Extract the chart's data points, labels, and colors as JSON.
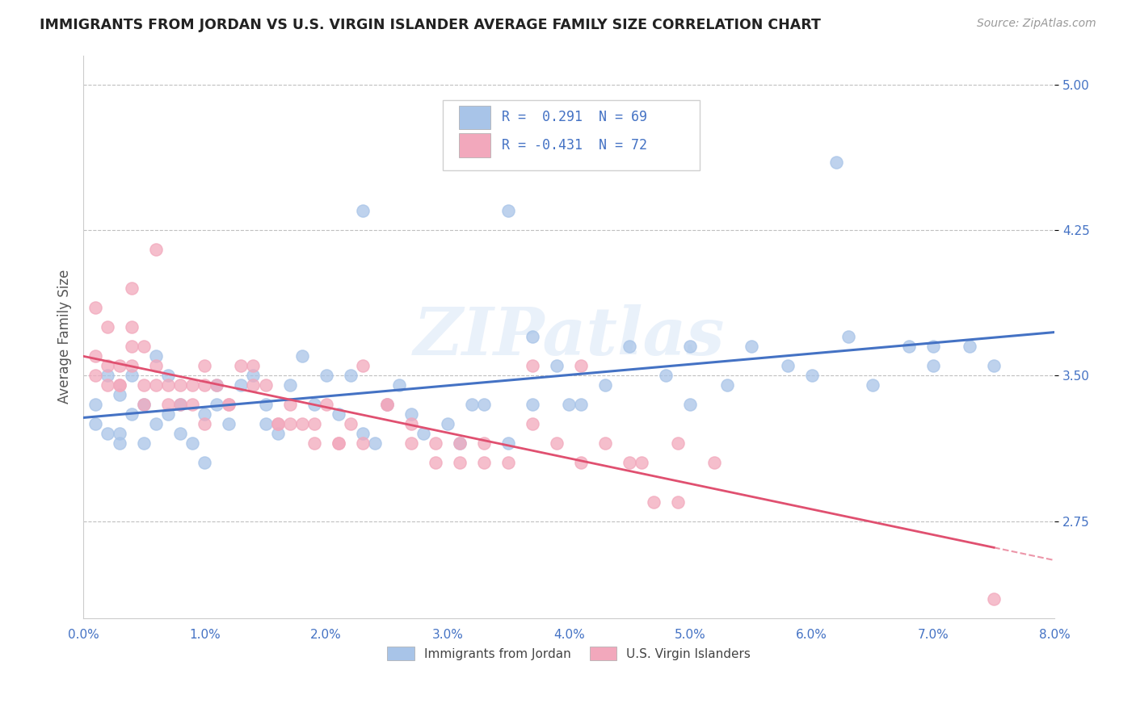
{
  "title": "IMMIGRANTS FROM JORDAN VS U.S. VIRGIN ISLANDER AVERAGE FAMILY SIZE CORRELATION CHART",
  "source": "Source: ZipAtlas.com",
  "ylabel": "Average Family Size",
  "xlim": [
    0.0,
    0.08
  ],
  "ylim": [
    2.25,
    5.15
  ],
  "yticks": [
    2.75,
    3.5,
    4.25,
    5.0
  ],
  "xticks": [
    0.0,
    0.01,
    0.02,
    0.03,
    0.04,
    0.05,
    0.06,
    0.07,
    0.08
  ],
  "xtick_labels": [
    "0.0%",
    "1.0%",
    "2.0%",
    "3.0%",
    "4.0%",
    "5.0%",
    "6.0%",
    "7.0%",
    "8.0%"
  ],
  "series1_color": "#a8c4e8",
  "series2_color": "#f2a8bc",
  "trend1_color": "#4472c4",
  "trend2_color": "#e05070",
  "R1": 0.291,
  "N1": 69,
  "R2": -0.431,
  "N2": 72,
  "legend_label1": "Immigrants from Jordan",
  "legend_label2": "U.S. Virgin Islanders",
  "watermark": "ZIPatlas",
  "title_color": "#222222",
  "axis_color": "#4472c4",
  "background_color": "#ffffff",
  "grid_color": "#c0c0c0",
  "series1_x": [
    0.001,
    0.001,
    0.002,
    0.002,
    0.003,
    0.003,
    0.003,
    0.004,
    0.004,
    0.005,
    0.005,
    0.006,
    0.006,
    0.007,
    0.007,
    0.008,
    0.008,
    0.009,
    0.01,
    0.01,
    0.011,
    0.011,
    0.012,
    0.013,
    0.014,
    0.015,
    0.016,
    0.017,
    0.018,
    0.019,
    0.02,
    0.021,
    0.022,
    0.023,
    0.024,
    0.025,
    0.026,
    0.027,
    0.028,
    0.03,
    0.031,
    0.032,
    0.033,
    0.035,
    0.037,
    0.039,
    0.041,
    0.043,
    0.045,
    0.048,
    0.05,
    0.053,
    0.055,
    0.058,
    0.06,
    0.063,
    0.065,
    0.068,
    0.07,
    0.073,
    0.037,
    0.05,
    0.035,
    0.023,
    0.015,
    0.062,
    0.075,
    0.07,
    0.04
  ],
  "series1_y": [
    3.25,
    3.35,
    3.5,
    3.2,
    3.4,
    3.2,
    3.15,
    3.3,
    3.5,
    3.35,
    3.15,
    3.25,
    3.6,
    3.3,
    3.5,
    3.35,
    3.2,
    3.15,
    3.3,
    3.05,
    3.35,
    3.45,
    3.25,
    3.45,
    3.5,
    3.35,
    3.2,
    3.45,
    3.6,
    3.35,
    3.5,
    3.3,
    3.5,
    3.2,
    3.15,
    3.35,
    3.45,
    3.3,
    3.2,
    3.25,
    3.15,
    3.35,
    3.35,
    3.15,
    3.35,
    3.55,
    3.35,
    3.45,
    3.65,
    3.5,
    3.35,
    3.45,
    3.65,
    3.55,
    3.5,
    3.7,
    3.45,
    3.65,
    3.55,
    3.65,
    3.7,
    3.65,
    4.35,
    4.35,
    3.25,
    4.6,
    3.55,
    3.65,
    3.35
  ],
  "series2_x": [
    0.001,
    0.001,
    0.001,
    0.002,
    0.002,
    0.002,
    0.003,
    0.003,
    0.003,
    0.004,
    0.004,
    0.004,
    0.005,
    0.005,
    0.006,
    0.006,
    0.007,
    0.007,
    0.008,
    0.008,
    0.009,
    0.009,
    0.01,
    0.01,
    0.011,
    0.012,
    0.013,
    0.014,
    0.015,
    0.016,
    0.017,
    0.018,
    0.019,
    0.02,
    0.021,
    0.022,
    0.023,
    0.025,
    0.027,
    0.029,
    0.031,
    0.033,
    0.035,
    0.037,
    0.039,
    0.041,
    0.043,
    0.046,
    0.049,
    0.052,
    0.017,
    0.019,
    0.021,
    0.023,
    0.025,
    0.027,
    0.029,
    0.031,
    0.033,
    0.01,
    0.012,
    0.014,
    0.016,
    0.004,
    0.005,
    0.006,
    0.037,
    0.041,
    0.045,
    0.049,
    0.047,
    0.075
  ],
  "series2_y": [
    3.6,
    3.5,
    3.85,
    3.45,
    3.75,
    3.55,
    3.55,
    3.45,
    3.45,
    3.95,
    3.65,
    3.75,
    3.45,
    3.35,
    3.45,
    3.55,
    3.45,
    3.35,
    3.35,
    3.45,
    3.35,
    3.45,
    3.25,
    3.55,
    3.45,
    3.35,
    3.55,
    3.55,
    3.45,
    3.25,
    3.35,
    3.25,
    3.25,
    3.35,
    3.15,
    3.25,
    3.15,
    3.35,
    3.25,
    3.05,
    3.15,
    3.15,
    3.05,
    3.25,
    3.15,
    3.05,
    3.15,
    3.05,
    3.15,
    3.05,
    3.25,
    3.15,
    3.15,
    3.55,
    3.35,
    3.15,
    3.15,
    3.05,
    3.05,
    3.45,
    3.35,
    3.45,
    3.25,
    3.55,
    3.65,
    4.15,
    3.55,
    3.55,
    3.05,
    2.85,
    2.85,
    2.35
  ]
}
